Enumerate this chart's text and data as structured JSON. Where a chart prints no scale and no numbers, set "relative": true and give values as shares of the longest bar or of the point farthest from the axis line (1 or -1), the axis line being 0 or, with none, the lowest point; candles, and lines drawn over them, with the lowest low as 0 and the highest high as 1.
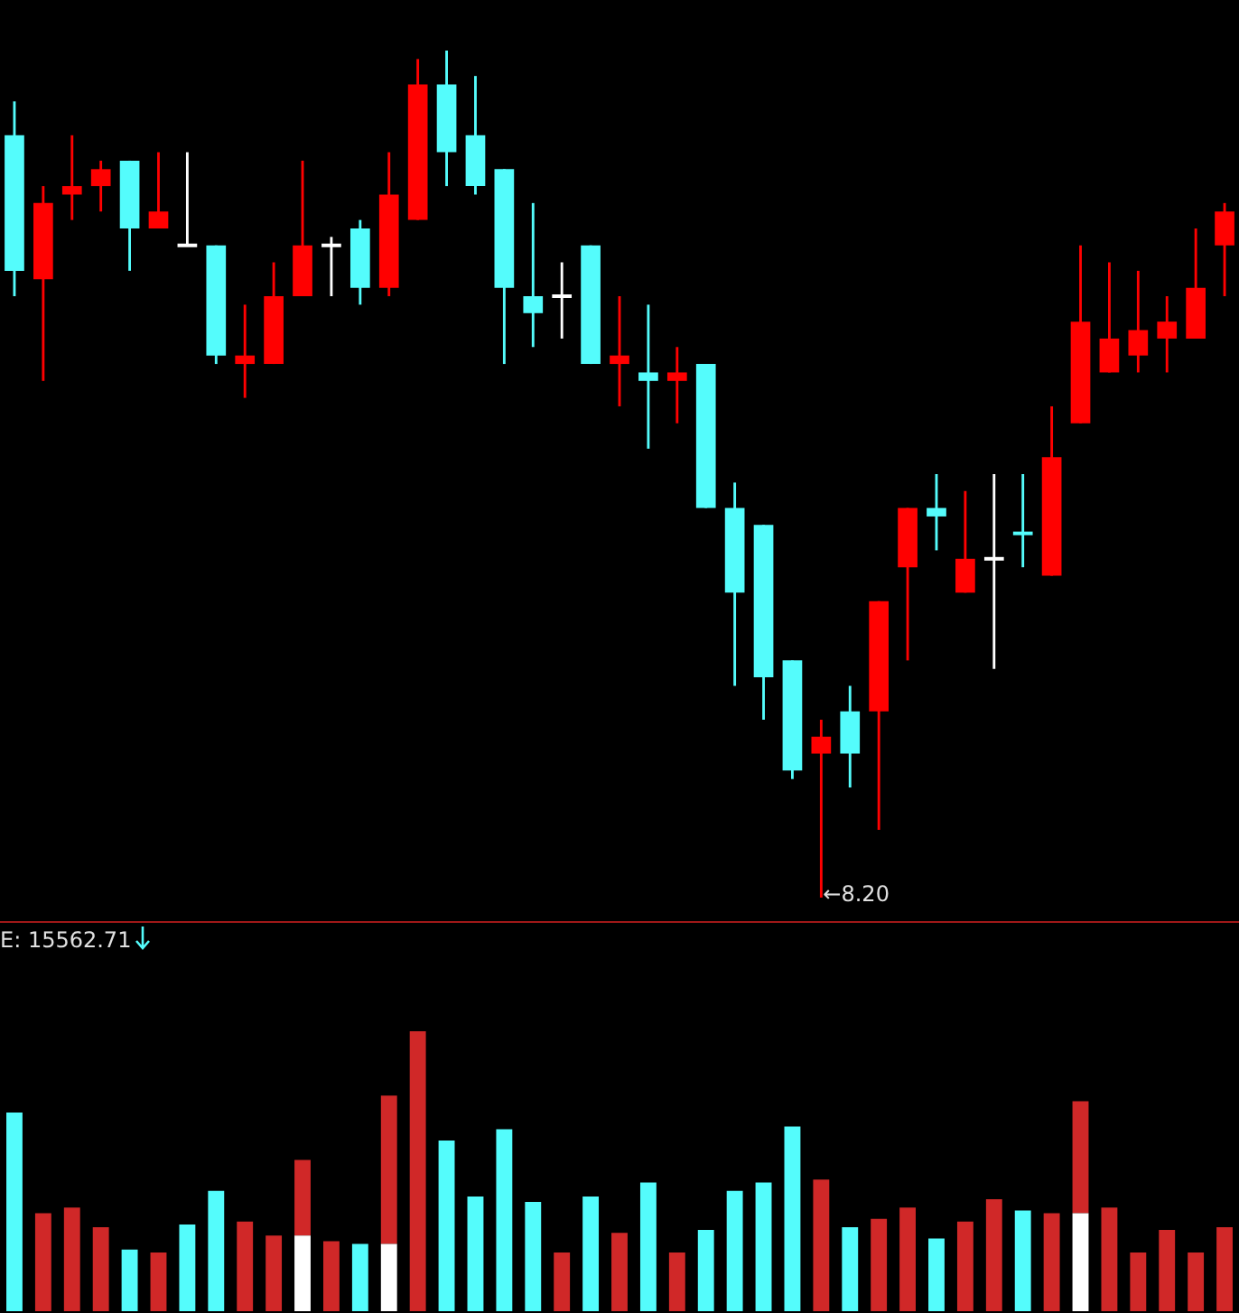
{
  "chart_data": [
    {
      "type": "candlestick",
      "relative": true,
      "categories": [
        null,
        null,
        null,
        null,
        null,
        null,
        null,
        null,
        null,
        null,
        null,
        null,
        null,
        null,
        null,
        null,
        null,
        null,
        null,
        null,
        null,
        null,
        null,
        null,
        null,
        null,
        null,
        null,
        null,
        null,
        null,
        null,
        null,
        null,
        null,
        null,
        null,
        null,
        null,
        null,
        null,
        null,
        null
      ],
      "ohlc": [
        [
          0.9,
          0.94,
          0.71,
          0.74
        ],
        [
          0.73,
          0.84,
          0.61,
          0.82
        ],
        [
          0.83,
          0.9,
          0.8,
          0.84
        ],
        [
          0.84,
          0.87,
          0.81,
          0.86
        ],
        [
          0.87,
          0.87,
          0.74,
          0.79
        ],
        [
          0.79,
          0.88,
          0.79,
          0.81
        ],
        [
          0.77,
          0.88,
          0.77,
          0.77
        ],
        [
          0.77,
          0.77,
          0.63,
          0.64
        ],
        [
          0.63,
          0.7,
          0.59,
          0.64
        ],
        [
          0.63,
          0.75,
          0.63,
          0.71
        ],
        [
          0.71,
          0.87,
          0.71,
          0.77
        ],
        [
          0.77,
          0.78,
          0.71,
          0.77
        ],
        [
          0.79,
          0.8,
          0.7,
          0.72
        ],
        [
          0.72,
          0.88,
          0.71,
          0.83
        ],
        [
          0.8,
          0.99,
          0.8,
          0.96
        ],
        [
          0.96,
          1,
          0.84,
          0.88
        ],
        [
          0.9,
          0.97,
          0.83,
          0.84
        ],
        [
          0.86,
          0.86,
          0.63,
          0.72
        ],
        [
          0.71,
          0.82,
          0.65,
          0.69
        ],
        [
          0.71,
          0.75,
          0.66,
          0.71
        ],
        [
          0.77,
          0.77,
          0.63,
          0.63
        ],
        [
          0.63,
          0.71,
          0.58,
          0.64
        ],
        [
          0.62,
          0.7,
          0.53,
          0.61
        ],
        [
          0.61,
          0.65,
          0.56,
          0.62
        ],
        [
          0.63,
          0.63,
          0.46,
          0.46
        ],
        [
          0.46,
          0.49,
          0.25,
          0.36
        ],
        [
          0.44,
          0.44,
          0.21,
          0.26
        ],
        [
          0.28,
          0.28,
          0.14,
          0.15
        ],
        [
          0.17,
          0.21,
          0,
          0.19
        ],
        [
          0.22,
          0.25,
          0.13,
          0.17
        ],
        [
          0.22,
          0.35,
          0.08,
          0.35
        ],
        [
          0.39,
          0.46,
          0.28,
          0.46
        ],
        [
          0.46,
          0.5,
          0.41,
          0.45
        ],
        [
          0.36,
          0.48,
          0.36,
          0.4
        ],
        [
          0.4,
          0.5,
          0.27,
          0.4
        ],
        [
          0.43,
          0.5,
          0.39,
          0.43
        ],
        [
          0.38,
          0.58,
          0.38,
          0.52
        ],
        [
          0.56,
          0.77,
          0.56,
          0.68
        ],
        [
          0.62,
          0.75,
          0.62,
          0.66
        ],
        [
          0.64,
          0.74,
          0.62,
          0.67
        ],
        [
          0.66,
          0.71,
          0.62,
          0.68
        ],
        [
          0.66,
          0.79,
          0.66,
          0.72
        ],
        [
          0.77,
          0.82,
          0.71,
          0.81
        ]
      ],
      "colors": [
        "#54fcfc",
        "#ff0000",
        "#ff0000",
        "#ff0000",
        "#54fcfc",
        "#ff0000",
        "#ffffff",
        "#54fcfc",
        "#ff0000",
        "#ff0000",
        "#ff0000",
        "#ffffff",
        "#54fcfc",
        "#ff0000",
        "#ff0000",
        "#54fcfc",
        "#54fcfc",
        "#54fcfc",
        "#54fcfc",
        "#ffffff",
        "#54fcfc",
        "#ff0000",
        "#54fcfc",
        "#ff0000",
        "#54fcfc",
        "#54fcfc",
        "#54fcfc",
        "#54fcfc",
        "#ff0000",
        "#54fcfc",
        "#ff0000",
        "#ff0000",
        "#54fcfc",
        "#ff0000",
        "#ffffff",
        "#54fcfc",
        "#ff0000",
        "#ff0000",
        "#ff0000",
        "#ff0000",
        "#ff0000",
        "#ff0000",
        "#ff0000"
      ],
      "annotations": [
        "←8.20"
      ]
    },
    {
      "type": "bar",
      "relative": true,
      "stacked": true,
      "title": "E: 15562.71",
      "categories": [
        null,
        null,
        null,
        null,
        null,
        null,
        null,
        null,
        null,
        null,
        null,
        null,
        null,
        null,
        null,
        null,
        null,
        null,
        null,
        null,
        null,
        null,
        null,
        null,
        null,
        null,
        null,
        null,
        null,
        null,
        null,
        null,
        null,
        null,
        null,
        null,
        null,
        null,
        null,
        null,
        null,
        null,
        null
      ],
      "series": [
        {
          "color": "#ffffff",
          "values": [
            null,
            null,
            null,
            null,
            null,
            null,
            null,
            null,
            null,
            null,
            0.27,
            null,
            null,
            0.24,
            null,
            null,
            null,
            null,
            null,
            null,
            null,
            null,
            null,
            null,
            null,
            null,
            null,
            null,
            null,
            null,
            null,
            null,
            null,
            null,
            null,
            null,
            null,
            0.35,
            null,
            null,
            null,
            null,
            null
          ]
        },
        {
          "colors": [
            "#54fcfc",
            "#d02828",
            "#d02828",
            "#d02828",
            "#54fcfc",
            "#d02828",
            "#54fcfc",
            "#54fcfc",
            "#d02828",
            "#d02828",
            "#d02828",
            "#d02828",
            "#54fcfc",
            "#d02828",
            "#d02828",
            "#54fcfc",
            "#54fcfc",
            "#54fcfc",
            "#54fcfc",
            "#d02828",
            "#54fcfc",
            "#d02828",
            "#54fcfc",
            "#d02828",
            "#54fcfc",
            "#54fcfc",
            "#54fcfc",
            "#54fcfc",
            "#d02828",
            "#54fcfc",
            "#d02828",
            "#d02828",
            "#54fcfc",
            "#d02828",
            "#d02828",
            "#54fcfc",
            "#d02828",
            "#d02828",
            "#d02828",
            "#d02828",
            "#d02828",
            "#d02828",
            "#d02828"
          ],
          "values": [
            0.71,
            0.35,
            0.37,
            0.3,
            0.22,
            0.21,
            0.31,
            0.43,
            0.32,
            0.27,
            0.27,
            0.25,
            0.24,
            0.53,
            1,
            0.61,
            0.41,
            0.65,
            0.39,
            0.21,
            0.41,
            0.28,
            0.46,
            0.21,
            0.29,
            0.43,
            0.46,
            0.66,
            0.47,
            0.3,
            0.33,
            0.37,
            0.26,
            0.32,
            0.4,
            0.36,
            0.35,
            0.4,
            0.37,
            0.21,
            0.29,
            0.21,
            0.3
          ]
        }
      ]
    }
  ]
}
